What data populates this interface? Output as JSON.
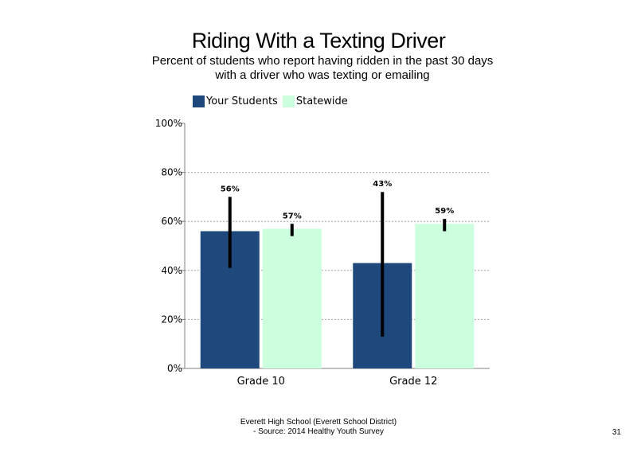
{
  "chart_data": {
    "type": "bar",
    "title": "Riding With a Texting Driver",
    "subtitle_lines": [
      "Percent of students who report having ridden in the past 30 days",
      "with a driver who was texting or emailing"
    ],
    "categories": [
      "Grade 10",
      "Grade 12"
    ],
    "series": [
      {
        "name": "Your Students",
        "values": [
          56,
          43
        ],
        "labels": [
          "56%",
          "43%"
        ],
        "error_low": [
          41,
          13
        ],
        "error_high": [
          70,
          72
        ],
        "color": "#1f497d"
      },
      {
        "name": "Statewide",
        "values": [
          57,
          59
        ],
        "labels": [
          "57%",
          "59%"
        ],
        "error_low": [
          54,
          56
        ],
        "error_high": [
          59,
          61
        ],
        "color": "#ccffdd"
      }
    ],
    "ylim": [
      0,
      100
    ],
    "y_ticks": [
      0,
      20,
      40,
      60,
      80,
      100
    ],
    "y_tick_labels": [
      "0%",
      "20%",
      "40%",
      "60%",
      "80%",
      "100%"
    ],
    "xlabel": "",
    "ylabel": "",
    "grid": true,
    "legend_position": "top-left",
    "error_bar_color": "#000000"
  },
  "footer": {
    "line1": "Everett High School (Everett School District)",
    "line2": "- Source: 2014 Healthy Youth Survey"
  },
  "page_number": "31"
}
